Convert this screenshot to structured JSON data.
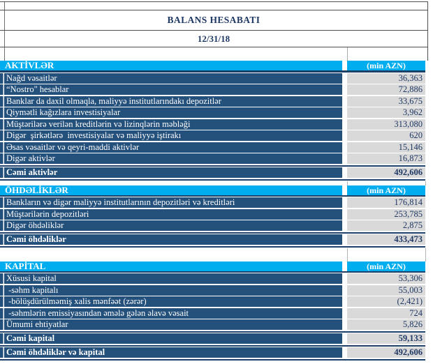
{
  "report": {
    "title": "BALANS HESABATI",
    "date": "12/31/18"
  },
  "colors": {
    "section_header_bg": "#00AEEF",
    "row_bg": "#24507C",
    "rule": "#1C4068",
    "value_cell_bg": "#D9D9D9",
    "value_text": "#1F3864",
    "header_text": "#FFFFFF"
  },
  "sections": [
    {
      "name": "AKTİVLƏR",
      "unit": "(min AZN)",
      "rows": [
        {
          "label": "Nağd vəsaitlər",
          "value": "36,363",
          "total": false
        },
        {
          "label": "“Nostro\" hesablar",
          "value": "72,886",
          "total": false
        },
        {
          "label": "Banklar da daxil olmaqla, maliyyə institutlarındakı depozitlər",
          "value": "33,675",
          "total": false
        },
        {
          "label": "Qiymətli kağızlara investisiyalar",
          "value": "3,962",
          "total": false
        },
        {
          "label": "Müştərilərə verilən kreditlərin və lizinqlərin məbləği",
          "value": "313,080",
          "total": false
        },
        {
          "label": "Digər  şirkətlərə  investisiyalar və maliyyə iştirakı",
          "value": "620",
          "total": false
        },
        {
          "label": "Əsas vəsaitlər və qeyri-maddi aktivlər",
          "value": "15,146",
          "total": false
        },
        {
          "label": "Digər aktivlər",
          "value": "16,873",
          "total": false
        },
        {
          "label": "Cəmi aktivlər",
          "value": "492,606",
          "total": true
        }
      ]
    },
    {
      "name": "ÖHDƏLİKLƏR",
      "unit": "(min AZN)",
      "rows": [
        {
          "label": "Bankların və digər maliyyə institutlarının depozitləri və kreditləri",
          "value": "176,814",
          "total": false
        },
        {
          "label": "Müştərilərin depozitləri",
          "value": "253,785",
          "total": false
        },
        {
          "label": "Digər öhdəliklər",
          "value": "2,875",
          "total": false
        },
        {
          "label": "Cəmi öhdəliklər",
          "value": "433,473",
          "total": true
        }
      ]
    },
    {
      "name": "KAPİTAL",
      "unit": "(min AZN)",
      "rows": [
        {
          "label": "Xüsusi kapital",
          "value": "53,306",
          "total": false
        },
        {
          "label": " -səhm kapitalı",
          "value": "55,003",
          "total": false
        },
        {
          "label": " -bölüşdürülməmiş xalis mənfəət (zərər)",
          "value": "(2,421)",
          "total": false
        },
        {
          "label": " -səhmlərin emissiyasından əmələ gələn əlavə vəsait",
          "value": "724",
          "total": false
        },
        {
          "label": "Ümumi ehtiyatlar",
          "value": "5,826",
          "total": false
        },
        {
          "label": "Cəmi kapital",
          "value": "59,133",
          "total": true
        },
        {
          "label": "Cəmi öhdəliklər və kapital",
          "value": "492,606",
          "total": true
        }
      ]
    }
  ]
}
